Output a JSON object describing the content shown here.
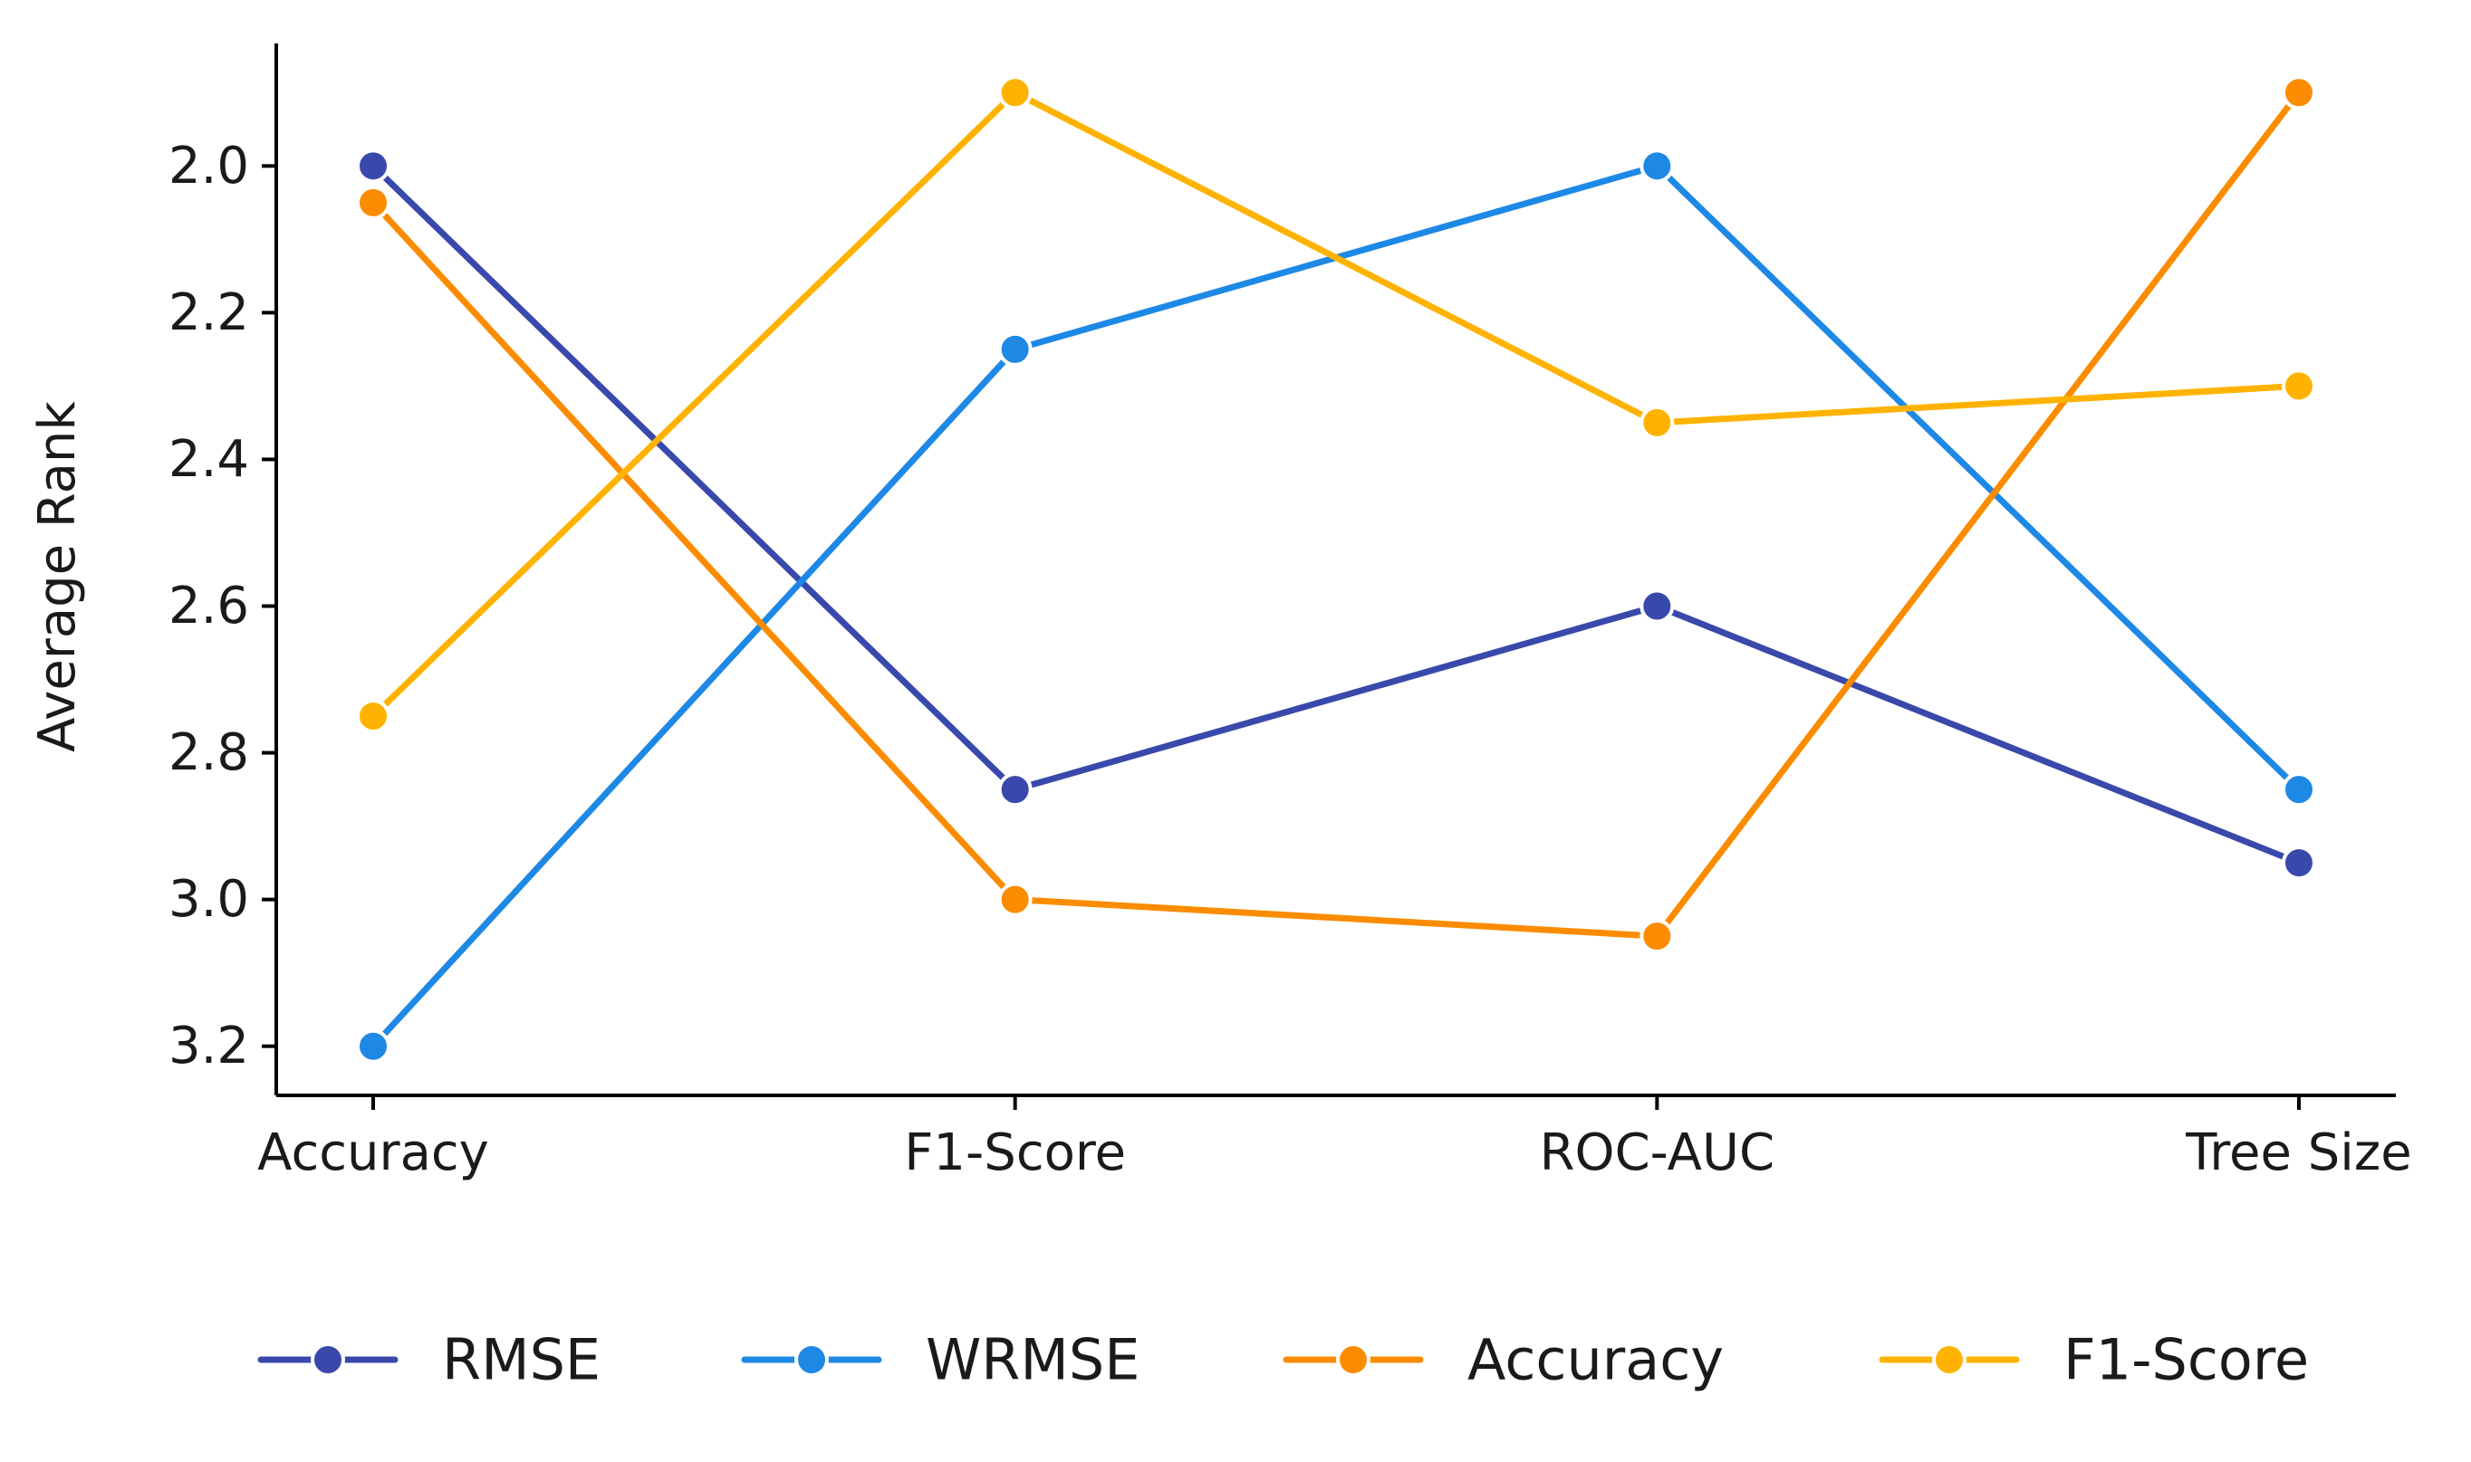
{
  "chart_data": {
    "type": "line",
    "title": "",
    "xlabel": "",
    "ylabel": "Average Rank",
    "categories": [
      "Accuracy",
      "F1-Score",
      "ROC-AUC",
      "Tree Size"
    ],
    "ylim": [
      3.267,
      1.833
    ],
    "y_inverted": true,
    "yticks": [
      "2.0",
      "2.2",
      "2.4",
      "2.6",
      "2.8",
      "3.0",
      "3.2"
    ],
    "grid": false,
    "legend_position": "bottom",
    "series": [
      {
        "name": "RMSE",
        "color": "#3949ab",
        "values": [
          2.0,
          2.85,
          2.6,
          2.95
        ]
      },
      {
        "name": "WRMSE",
        "color": "#1e88e5",
        "values": [
          3.2,
          2.25,
          2.0,
          2.85
        ]
      },
      {
        "name": "Accuracy",
        "color": "#fb8c00",
        "values": [
          2.05,
          3.0,
          3.05,
          1.9
        ]
      },
      {
        "name": "F1-Score",
        "color": "#ffb300",
        "values": [
          2.75,
          1.9,
          2.35,
          2.3
        ]
      }
    ]
  }
}
